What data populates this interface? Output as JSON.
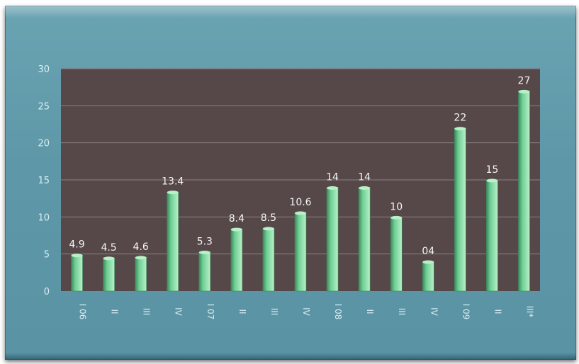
{
  "chart_data": {
    "type": "bar",
    "categories": [
      "I 06",
      "II",
      "III",
      "IV",
      "I 07",
      "II",
      "III",
      "IV",
      "I 08",
      "II",
      "III",
      "IV",
      "I 09",
      "II",
      "III*"
    ],
    "values": [
      4.9,
      4.5,
      4.6,
      13.4,
      5.3,
      8.4,
      8.5,
      10.6,
      14,
      14,
      10,
      4,
      22,
      15,
      27
    ],
    "data_labels": [
      "4.9",
      "4.5",
      "4.6",
      "13.4",
      "5.3",
      "8.4",
      "8.5",
      "10.6",
      "14",
      "14",
      "10",
      "04",
      "22",
      "15",
      "27"
    ],
    "ylim": [
      0,
      30
    ],
    "yticks": [
      "0",
      "5",
      "10",
      "15",
      "20",
      "25",
      "30"
    ],
    "grid": true,
    "title": "",
    "xlabel": "",
    "ylabel": "",
    "colors": {
      "plot_background": "#564848",
      "frame_background": "#5f98a8",
      "bar": "#6fcf95",
      "bar_highlight": "#b9f0c9",
      "bar_shadow": "#3d8a5c",
      "gridline": "#8c8080"
    }
  }
}
